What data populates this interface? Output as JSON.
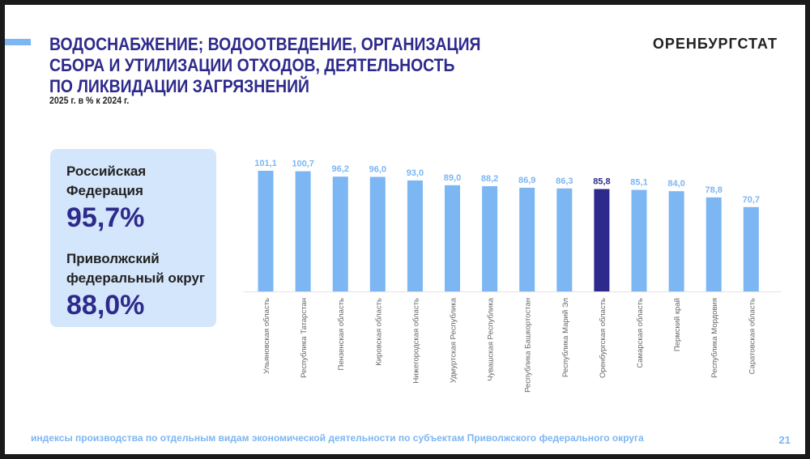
{
  "header": {
    "title_lines": [
      "ВОДОСНАБЖЕНИЕ; ВОДООТВЕДЕНИЕ, ОРГАНИЗАЦИЯ",
      "СБОРА И УТИЛИЗАЦИИ ОТХОДОВ, ДЕЯТЕЛЬНОСТЬ",
      "ПО ЛИКВИДАЦИИ ЗАГРЯЗНЕНИЙ"
    ],
    "subtitle": "2025 г. в % к 2024 г.",
    "brand": "ОРЕНБУРГСТАТ"
  },
  "summary": {
    "rf_label_1": "Российская",
    "rf_label_2": "Федерация",
    "rf_value": "95,7%",
    "pfo_label_1": "Приволжский",
    "pfo_label_2": "федеральный округ",
    "pfo_value": "88,0%"
  },
  "chart_data": {
    "type": "bar",
    "title": "2025 г. в % к 2024 г.",
    "categories": [
      "Ульяновская область",
      "Республика Татарстан",
      "Пензенская область",
      "Кировская область",
      "Нижегородская область",
      "Удмуртская Республика",
      "Чувашская Республика",
      "Республика Башкортостан",
      "Республика Марий Эл",
      "Оренбургская область",
      "Самарская область",
      "Пермский край",
      "Республика Мордовия",
      "Саратовская область"
    ],
    "values": [
      101.1,
      100.7,
      96.2,
      96.0,
      93.0,
      89.0,
      88.2,
      86.9,
      86.3,
      85.8,
      85.1,
      84.0,
      78.8,
      70.7
    ],
    "labels": [
      "101,1",
      "100,7",
      "96,2",
      "96,0",
      "93,0",
      "89,0",
      "88,2",
      "86,9",
      "86,3",
      "85,8",
      "85,1",
      "84,0",
      "78,8",
      "70,7"
    ],
    "highlight": "Оренбургская область",
    "ylim": [
      0,
      110
    ],
    "colors": {
      "bar": "#7cb6f3",
      "highlight": "#2e2a8c",
      "label": "#7cb6f3"
    }
  },
  "footer": {
    "note": "индексы производства по отдельным видам экономической деятельности по субъектам Приволжского федерального округа",
    "page": "21"
  }
}
